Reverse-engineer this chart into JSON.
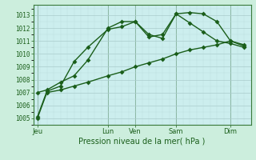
{
  "background_color": "#cceedd",
  "plot_bg_color": "#cceeee",
  "grid_color_major": "#aacccc",
  "grid_color_minor": "#bbdddd",
  "line_color": "#1a5e1a",
  "dark_line_color": "#2d7a2d",
  "xlabel": "Pression niveau de la mer( hPa )",
  "ylim": [
    1004.5,
    1013.8
  ],
  "xlim": [
    0,
    16
  ],
  "yticks": [
    1005,
    1006,
    1007,
    1008,
    1009,
    1010,
    1011,
    1012,
    1013
  ],
  "day_labels": [
    "Jeu",
    "Lun",
    "Ven",
    "Sam",
    "Dim"
  ],
  "day_x": [
    0.3,
    5.5,
    7.5,
    10.5,
    14.5
  ],
  "day_vlines": [
    0.3,
    5.5,
    7.5,
    10.5,
    14.5
  ],
  "series1_x": [
    0.3,
    1.0,
    2.0,
    3.0,
    4.0,
    5.5,
    6.5,
    7.5,
    8.5,
    9.5,
    10.5,
    11.5,
    12.5,
    13.5,
    14.5,
    15.5
  ],
  "series1_y": [
    1005.0,
    1007.0,
    1007.2,
    1007.5,
    1007.8,
    1008.3,
    1008.6,
    1009.0,
    1009.3,
    1009.6,
    1010.0,
    1010.3,
    1010.5,
    1010.7,
    1011.0,
    1010.7
  ],
  "series2_x": [
    0.3,
    1.0,
    2.0,
    3.0,
    4.0,
    5.5,
    6.5,
    7.5,
    8.5,
    9.5,
    10.5,
    11.5,
    12.5,
    13.5,
    14.5,
    15.5
  ],
  "series2_y": [
    1007.0,
    1007.2,
    1007.8,
    1008.3,
    1009.5,
    1012.0,
    1012.5,
    1012.5,
    1011.5,
    1011.2,
    1013.1,
    1013.2,
    1013.1,
    1012.5,
    1011.0,
    1010.6
  ],
  "series3_x": [
    0.3,
    1.0,
    2.0,
    3.0,
    4.0,
    5.5,
    6.5,
    7.5,
    8.5,
    9.5,
    10.5,
    11.5,
    12.5,
    13.5,
    14.5,
    15.5
  ],
  "series3_y": [
    1005.1,
    1007.1,
    1007.5,
    1009.4,
    1010.5,
    1011.9,
    1012.1,
    1012.5,
    1011.3,
    1011.5,
    1013.1,
    1012.4,
    1011.7,
    1011.0,
    1010.8,
    1010.5
  ],
  "marker_size": 3,
  "line_width": 1.0
}
